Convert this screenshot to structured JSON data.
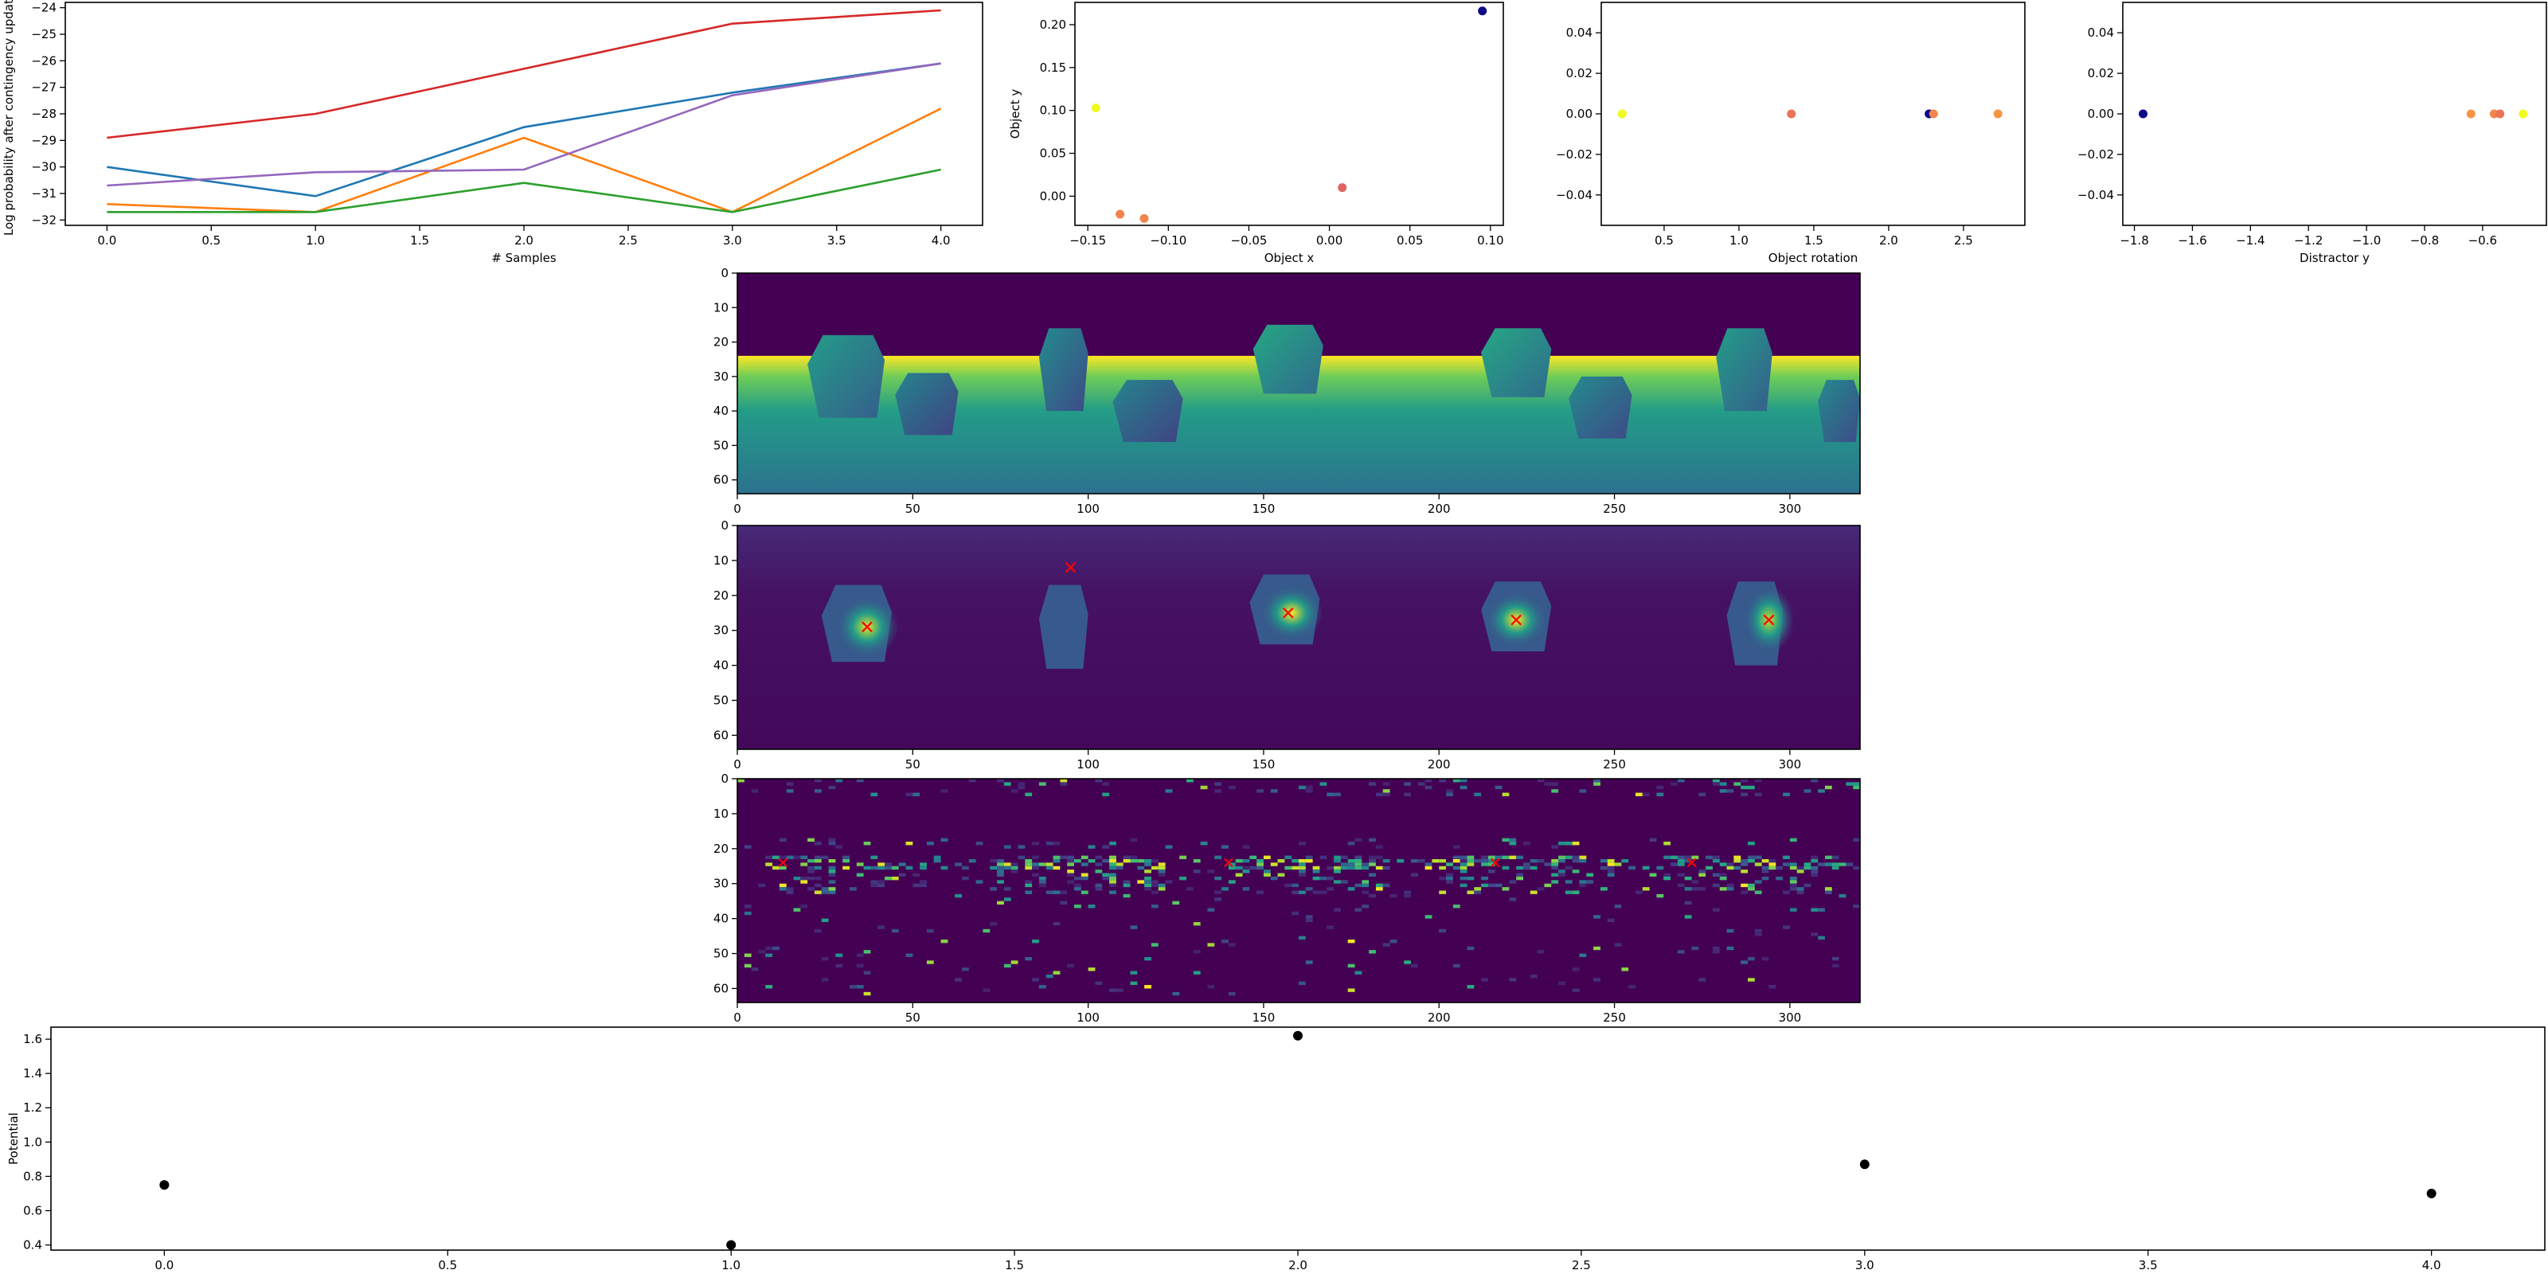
{
  "colors": {
    "tab_blue": "#1f77b4",
    "tab_orange": "#ff7f0e",
    "tab_green": "#2ca02c",
    "tab_red": "#d62728",
    "tab_purple": "#9467bd",
    "marker_cross": "#ff0000",
    "potential_points": "#000000"
  },
  "colormap": "viridis",
  "chart_data": [
    {
      "id": "log-prob",
      "type": "line",
      "xlabel": "# Samples",
      "ylabel": "Log probability after contingency update",
      "xlim": [
        -0.2,
        4.2
      ],
      "ylim": [
        -32.2,
        -23.8
      ],
      "x_ticks": [
        0.0,
        0.5,
        1.0,
        1.5,
        2.0,
        2.5,
        3.0,
        3.5,
        4.0
      ],
      "x_tick_labels": [
        "0.0",
        "0.5",
        "1.0",
        "1.5",
        "2.0",
        "2.5",
        "3.0",
        "3.5",
        "4.0"
      ],
      "y_ticks": [
        -32,
        -31,
        -30,
        -29,
        -28,
        -27,
        -26,
        -25,
        -24
      ],
      "y_tick_labels": [
        "−32",
        "−31",
        "−30",
        "−29",
        "−28",
        "−27",
        "−26",
        "−25",
        "−24"
      ],
      "x": [
        0,
        1,
        2,
        3,
        4
      ],
      "series": [
        {
          "color": "#1f77b4",
          "values": [
            -30.0,
            -31.1,
            -28.5,
            -27.2,
            -26.1
          ]
        },
        {
          "color": "#ff7f0e",
          "values": [
            -31.4,
            -31.7,
            -28.9,
            -31.7,
            -27.8
          ]
        },
        {
          "color": "#2ca02c",
          "values": [
            -31.7,
            -31.7,
            -30.6,
            -31.7,
            -30.1
          ]
        },
        {
          "color": "#d62728",
          "values": [
            -28.9,
            -28.0,
            -26.3,
            -24.6,
            -24.1
          ]
        },
        {
          "color": "#9467bd",
          "values": [
            -30.7,
            -30.2,
            -30.1,
            -27.3,
            -26.1
          ]
        }
      ]
    },
    {
      "id": "object-xy",
      "type": "scatter",
      "xlabel": "Object x",
      "ylabel": "Object y",
      "xlim": [
        -0.158,
        0.108
      ],
      "ylim": [
        -0.034,
        0.226
      ],
      "x_ticks": [
        -0.15,
        -0.1,
        -0.05,
        0.0,
        0.05,
        0.1
      ],
      "x_tick_labels": [
        "−0.15",
        "−0.10",
        "−0.05",
        "0.00",
        "0.05",
        "0.10"
      ],
      "y_ticks": [
        0.0,
        0.05,
        0.1,
        0.15,
        0.2
      ],
      "y_tick_labels": [
        "0.00",
        "0.05",
        "0.10",
        "0.15",
        "0.20"
      ],
      "points": [
        {
          "x": 0.095,
          "y": 0.216,
          "c": 0.0
        },
        {
          "x": -0.145,
          "y": 0.103,
          "c": 1.0
        },
        {
          "x": -0.13,
          "y": -0.021,
          "c": 0.7
        },
        {
          "x": -0.115,
          "y": -0.026,
          "c": 0.7
        },
        {
          "x": 0.008,
          "y": 0.01,
          "c": 0.6
        }
      ]
    },
    {
      "id": "object-rotation",
      "type": "scatter",
      "xlabel": "Object rotation",
      "ylabel": "",
      "xlim": [
        0.08,
        2.91
      ],
      "ylim": [
        -0.055,
        0.055
      ],
      "x_ticks": [
        0.5,
        1.0,
        1.5,
        2.0,
        2.5
      ],
      "x_tick_labels": [
        "0.5",
        "1.0",
        "1.5",
        "2.0",
        "2.5"
      ],
      "y_ticks": [
        -0.04,
        -0.02,
        0.0,
        0.02,
        0.04
      ],
      "y_tick_labels": [
        "−0.04",
        "−0.02",
        "0.00",
        "0.02",
        "0.04"
      ],
      "points": [
        {
          "x": 0.22,
          "y": 0.0,
          "c": 1.0
        },
        {
          "x": 1.35,
          "y": 0.0,
          "c": 0.65
        },
        {
          "x": 2.27,
          "y": 0.0,
          "c": 0.0
        },
        {
          "x": 2.3,
          "y": 0.0,
          "c": 0.7
        },
        {
          "x": 2.73,
          "y": 0.0,
          "c": 0.75
        }
      ]
    },
    {
      "id": "distractor-y",
      "type": "scatter",
      "xlabel": "Distractor y",
      "ylabel": "",
      "xlim": [
        -1.84,
        -0.38
      ],
      "ylim": [
        -0.055,
        0.055
      ],
      "x_ticks": [
        -1.8,
        -1.6,
        -1.4,
        -1.2,
        -1.0,
        -0.8,
        -0.6
      ],
      "x_tick_labels": [
        "−1.8",
        "−1.6",
        "−1.4",
        "−1.2",
        "−1.0",
        "−0.8",
        "−0.6"
      ],
      "y_ticks": [
        -0.04,
        -0.02,
        0.0,
        0.02,
        0.04
      ],
      "y_tick_labels": [
        "−0.04",
        "−0.02",
        "0.00",
        "0.02",
        "0.04"
      ],
      "points": [
        {
          "x": -1.77,
          "y": 0.0,
          "c": 0.0
        },
        {
          "x": -0.64,
          "y": 0.0,
          "c": 0.75
        },
        {
          "x": -0.56,
          "y": 0.0,
          "c": 0.7
        },
        {
          "x": -0.54,
          "y": 0.0,
          "c": 0.65
        },
        {
          "x": -0.46,
          "y": 0.0,
          "c": 1.0
        }
      ]
    },
    {
      "id": "image-depth",
      "type": "heatmap",
      "x_ticks": [
        0,
        50,
        100,
        150,
        200,
        250,
        300
      ],
      "x_tick_labels": [
        "0",
        "50",
        "100",
        "150",
        "200",
        "250",
        "300"
      ],
      "y_ticks": [
        0,
        10,
        20,
        30,
        40,
        50,
        60
      ],
      "y_tick_labels": [
        "0",
        "10",
        "20",
        "30",
        "40",
        "50",
        "60"
      ],
      "xlim": [
        0,
        320
      ],
      "ylim": [
        0,
        64
      ],
      "floor_row": 24,
      "objects": [
        {
          "cx": 31,
          "cy": 30,
          "w": 22,
          "h": 24,
          "v": 0.45
        },
        {
          "cx": 54,
          "cy": 38,
          "w": 18,
          "h": 18,
          "v": 0.35
        },
        {
          "cx": 93,
          "cy": 28,
          "w": 14,
          "h": 24,
          "v": 0.38
        },
        {
          "cx": 117,
          "cy": 40,
          "w": 20,
          "h": 18,
          "v": 0.35
        },
        {
          "cx": 157,
          "cy": 25,
          "w": 20,
          "h": 20,
          "v": 0.5
        },
        {
          "cx": 222,
          "cy": 26,
          "w": 20,
          "h": 20,
          "v": 0.5
        },
        {
          "cx": 246,
          "cy": 39,
          "w": 18,
          "h": 18,
          "v": 0.38
        },
        {
          "cx": 287,
          "cy": 28,
          "w": 16,
          "h": 24,
          "v": 0.45
        },
        {
          "cx": 314,
          "cy": 40,
          "w": 12,
          "h": 18,
          "v": 0.38
        }
      ]
    },
    {
      "id": "image-activation",
      "type": "heatmap",
      "x_ticks": [
        0,
        50,
        100,
        150,
        200,
        250,
        300
      ],
      "x_tick_labels": [
        "0",
        "50",
        "100",
        "150",
        "200",
        "250",
        "300"
      ],
      "y_ticks": [
        0,
        10,
        20,
        30,
        40,
        50,
        60
      ],
      "y_tick_labels": [
        "0",
        "10",
        "20",
        "30",
        "40",
        "50",
        "60"
      ],
      "xlim": [
        0,
        320
      ],
      "ylim": [
        0,
        64
      ],
      "objects": [
        {
          "cx": 34,
          "cy": 28,
          "w": 20,
          "h": 22,
          "peak": [
            37,
            29
          ],
          "v": 0.95
        },
        {
          "cx": 93,
          "cy": 29,
          "w": 14,
          "h": 24,
          "peak": null,
          "v": 0.35
        },
        {
          "cx": 156,
          "cy": 24,
          "w": 20,
          "h": 20,
          "peak": [
            158,
            25
          ],
          "v": 1.0
        },
        {
          "cx": 222,
          "cy": 26,
          "w": 20,
          "h": 20,
          "peak": [
            222,
            27
          ],
          "v": 1.0
        },
        {
          "cx": 290,
          "cy": 28,
          "w": 16,
          "h": 24,
          "peak": [
            294,
            27
          ],
          "v": 0.9
        }
      ],
      "crosses": [
        [
          37,
          29
        ],
        [
          95,
          12
        ],
        [
          157,
          25
        ],
        [
          222,
          27
        ],
        [
          294,
          27
        ]
      ]
    },
    {
      "id": "image-gradient",
      "type": "heatmap",
      "x_ticks": [
        0,
        50,
        100,
        150,
        200,
        250,
        300
      ],
      "x_tick_labels": [
        "0",
        "50",
        "100",
        "150",
        "200",
        "250",
        "300"
      ],
      "y_ticks": [
        0,
        10,
        20,
        30,
        40,
        50,
        60
      ],
      "y_tick_labels": [
        "0",
        "10",
        "20",
        "30",
        "40",
        "50",
        "60"
      ],
      "xlim": [
        0,
        320
      ],
      "ylim": [
        0,
        64
      ],
      "crosses": [
        [
          13,
          24
        ],
        [
          140,
          24
        ],
        [
          216,
          24
        ],
        [
          272,
          24
        ]
      ]
    },
    {
      "id": "potential",
      "type": "scatter",
      "xlabel": "",
      "ylabel": "Potential",
      "xlim": [
        -0.2,
        4.2
      ],
      "ylim": [
        0.37,
        1.67
      ],
      "x_ticks": [
        0.0,
        0.5,
        1.0,
        1.5,
        2.0,
        2.5,
        3.0,
        3.5,
        4.0
      ],
      "x_tick_labels": [
        "0.0",
        "0.5",
        "1.0",
        "1.5",
        "2.0",
        "2.5",
        "3.0",
        "3.5",
        "4.0"
      ],
      "y_ticks": [
        0.4,
        0.6,
        0.8,
        1.0,
        1.2,
        1.4,
        1.6
      ],
      "y_tick_labels": [
        "0.4",
        "0.6",
        "0.8",
        "1.0",
        "1.2",
        "1.4",
        "1.6"
      ],
      "x": [
        0,
        1,
        2,
        3,
        4
      ],
      "values": [
        0.75,
        0.4,
        1.62,
        0.87,
        0.7
      ]
    }
  ]
}
